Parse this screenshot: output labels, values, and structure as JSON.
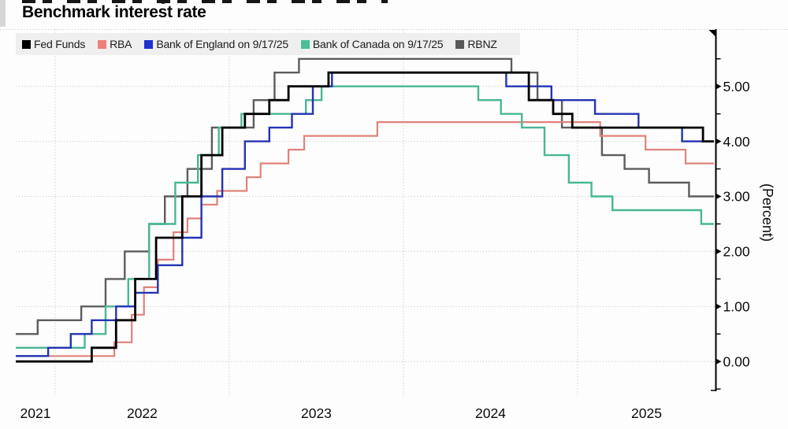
{
  "title": "Benchmark interest rate",
  "legend": {
    "items": [
      {
        "label": "Fed Funds",
        "color": "#000000"
      },
      {
        "label": "RBA",
        "color": "#ee7f79"
      },
      {
        "label": "Bank of England on 9/17/25",
        "color": "#2031cf"
      },
      {
        "label": "Bank of Canada on 9/17/25",
        "color": "#4cbd96"
      },
      {
        "label": "RBNZ",
        "color": "#5a5a5a"
      }
    ]
  },
  "chart_data": {
    "type": "line",
    "step": true,
    "title": "Benchmark interest rate",
    "xlabel": "",
    "ylabel": "(Percent)",
    "xlim": [
      2021.774,
      2025.792
    ],
    "x_end": 2025.783,
    "ylim": [
      -0.54,
      6.04
    ],
    "grid_on": true,
    "grid_color": "#c8c8c8",
    "legend_position": "top-left",
    "x_gridlines": [
      2022,
      2023,
      2024,
      2025
    ],
    "x_tick_labels": [
      {
        "label": "2021",
        "x": 2021.887
      },
      {
        "label": "2022",
        "x": 2022.5
      },
      {
        "label": "2023",
        "x": 2023.5
      },
      {
        "label": "2024",
        "x": 2024.5
      },
      {
        "label": "2025",
        "x": 2025.396
      }
    ],
    "y_ticks": {
      "values": [
        0,
        1,
        2,
        3,
        4,
        5
      ],
      "labels": [
        "0.00",
        "1.00",
        "2.00",
        "3.00",
        "4.00",
        "5.00"
      ],
      "minor_step": 0.5,
      "minor_min": -0.5,
      "minor_max": 5.5
    },
    "series": [
      {
        "name": "Fed Funds",
        "color": "#000000",
        "width": 2.8,
        "z": 5,
        "points": [
          [
            2021.774,
            0.0
          ],
          [
            2022.21,
            0.25
          ],
          [
            2022.35,
            0.75
          ],
          [
            2022.46,
            1.5
          ],
          [
            2022.58,
            2.25
          ],
          [
            2022.73,
            3.0
          ],
          [
            2022.84,
            3.75
          ],
          [
            2022.96,
            4.25
          ],
          [
            2023.09,
            4.5
          ],
          [
            2023.23,
            4.75
          ],
          [
            2023.34,
            5.0
          ],
          [
            2023.57,
            5.25
          ],
          [
            2024.72,
            4.75
          ],
          [
            2024.86,
            4.5
          ],
          [
            2024.97,
            4.25
          ],
          [
            2025.72,
            4.0
          ]
        ]
      },
      {
        "name": "RBA",
        "color": "#e0827c",
        "width": 2.2,
        "z": 2,
        "points": [
          [
            2021.774,
            0.1
          ],
          [
            2022.34,
            0.35
          ],
          [
            2022.44,
            0.85
          ],
          [
            2022.51,
            1.35
          ],
          [
            2022.59,
            1.85
          ],
          [
            2022.68,
            2.35
          ],
          [
            2022.76,
            2.6
          ],
          [
            2022.84,
            2.85
          ],
          [
            2022.93,
            3.1
          ],
          [
            2023.1,
            3.35
          ],
          [
            2023.18,
            3.6
          ],
          [
            2023.34,
            3.85
          ],
          [
            2023.43,
            4.1
          ],
          [
            2023.85,
            4.35
          ],
          [
            2025.13,
            4.1
          ],
          [
            2025.39,
            3.85
          ],
          [
            2025.62,
            3.6
          ]
        ]
      },
      {
        "name": "Bank of England on 9/17/25",
        "color": "#2433b4",
        "width": 2.4,
        "z": 4,
        "points": [
          [
            2021.774,
            0.1
          ],
          [
            2021.96,
            0.25
          ],
          [
            2022.09,
            0.5
          ],
          [
            2022.21,
            0.75
          ],
          [
            2022.35,
            1.0
          ],
          [
            2022.46,
            1.25
          ],
          [
            2022.59,
            1.75
          ],
          [
            2022.73,
            2.25
          ],
          [
            2022.84,
            3.0
          ],
          [
            2022.96,
            3.5
          ],
          [
            2023.09,
            4.0
          ],
          [
            2023.23,
            4.25
          ],
          [
            2023.36,
            4.5
          ],
          [
            2023.48,
            5.0
          ],
          [
            2023.59,
            5.25
          ],
          [
            2024.59,
            5.0
          ],
          [
            2024.85,
            4.75
          ],
          [
            2025.1,
            4.5
          ],
          [
            2025.35,
            4.25
          ],
          [
            2025.6,
            4.0
          ]
        ]
      },
      {
        "name": "Bank of Canada on 9/17/25",
        "color": "#47b795",
        "width": 2.4,
        "z": 3,
        "points": [
          [
            2021.774,
            0.25
          ],
          [
            2022.17,
            0.5
          ],
          [
            2022.29,
            1.0
          ],
          [
            2022.42,
            1.5
          ],
          [
            2022.54,
            2.5
          ],
          [
            2022.69,
            3.25
          ],
          [
            2022.82,
            3.75
          ],
          [
            2022.94,
            4.25
          ],
          [
            2023.07,
            4.5
          ],
          [
            2023.44,
            4.75
          ],
          [
            2023.53,
            5.0
          ],
          [
            2024.43,
            4.75
          ],
          [
            2024.56,
            4.5
          ],
          [
            2024.68,
            4.25
          ],
          [
            2024.81,
            3.75
          ],
          [
            2024.95,
            3.25
          ],
          [
            2025.08,
            3.0
          ],
          [
            2025.2,
            2.75
          ],
          [
            2025.71,
            2.5
          ]
        ]
      },
      {
        "name": "RBNZ",
        "color": "#5d5d5d",
        "width": 2.4,
        "z": 1,
        "points": [
          [
            2021.774,
            0.5
          ],
          [
            2021.9,
            0.75
          ],
          [
            2022.15,
            1.0
          ],
          [
            2022.29,
            1.5
          ],
          [
            2022.4,
            2.0
          ],
          [
            2022.54,
            2.5
          ],
          [
            2022.63,
            3.0
          ],
          [
            2022.76,
            3.5
          ],
          [
            2022.9,
            4.25
          ],
          [
            2023.14,
            4.75
          ],
          [
            2023.26,
            5.25
          ],
          [
            2023.4,
            5.5
          ],
          [
            2024.62,
            5.25
          ],
          [
            2024.77,
            4.75
          ],
          [
            2024.91,
            4.25
          ],
          [
            2025.14,
            3.75
          ],
          [
            2025.27,
            3.5
          ],
          [
            2025.41,
            3.25
          ],
          [
            2025.64,
            3.0
          ]
        ]
      }
    ]
  }
}
